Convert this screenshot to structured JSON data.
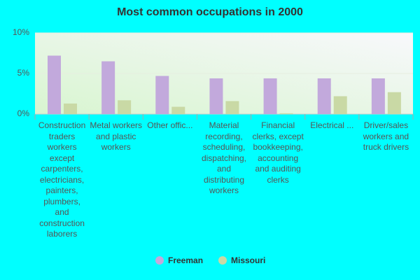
{
  "chart_data": {
    "type": "bar",
    "title": "Most common occupations in 2000",
    "categories": [
      "Construction traders workers except carpenters, electricians, painters, plumbers, and construction laborers",
      "Metal workers and plastic workers",
      "Other offic...",
      "Material recording, scheduling, dispatching, and distributing workers",
      "Financial clerks, except bookkeeping, accounting and auditing clerks",
      "Electrical ...",
      "Driver/sales workers and truck drivers"
    ],
    "series": [
      {
        "name": "Freeman",
        "color": "#c2a9dc",
        "values": [
          7.2,
          6.5,
          4.7,
          4.4,
          4.4,
          4.4,
          4.4
        ]
      },
      {
        "name": "Missouri",
        "color": "#c9d9a5",
        "values": [
          1.3,
          1.7,
          0.9,
          1.6,
          0.1,
          2.2,
          2.7
        ]
      }
    ],
    "ylim": [
      0,
      10
    ],
    "yticks": [
      {
        "value": 0,
        "label": "0%"
      },
      {
        "value": 5,
        "label": "5%"
      },
      {
        "value": 10,
        "label": "10%"
      }
    ],
    "grid": true
  }
}
